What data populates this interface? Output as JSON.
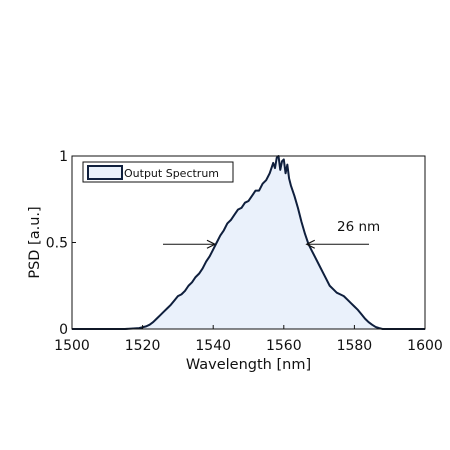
{
  "chart_data": {
    "type": "area",
    "xlabel": "Wavelength [nm]",
    "ylabel": "PSD [a.u.]",
    "xlim": [
      1500,
      1600
    ],
    "ylim": [
      0,
      1
    ],
    "xticks": [
      "1500",
      "1520",
      "1540",
      "1560",
      "1580",
      "1600"
    ],
    "yticks": [
      "0",
      "0.5",
      "1"
    ],
    "grid": false,
    "legend_position": "top-left",
    "series": [
      {
        "name": "Output Spectrum",
        "line_color": "#0f1f3d",
        "fill_color": "#eaf1fb",
        "x": [
          1500,
          1515,
          1519,
          1521,
          1522,
          1523,
          1524,
          1525,
          1526,
          1527,
          1528,
          1529,
          1530,
          1531,
          1532,
          1533,
          1534,
          1535,
          1536,
          1537,
          1538,
          1539,
          1540,
          1541,
          1542,
          1543,
          1544,
          1545,
          1546,
          1547,
          1548,
          1549,
          1550,
          1551,
          1552,
          1553,
          1554,
          1555,
          1556,
          1557,
          1557.5,
          1558,
          1558.5,
          1559,
          1559.5,
          1560,
          1560.5,
          1561,
          1561.5,
          1562,
          1563,
          1564,
          1565,
          1566,
          1567,
          1568,
          1569,
          1570,
          1571,
          1572,
          1573,
          1574,
          1575,
          1576,
          1577,
          1578,
          1579,
          1580,
          1581,
          1582,
          1583,
          1584,
          1585,
          1586,
          1587,
          1588,
          1590,
          1595,
          1600
        ],
        "y": [
          0,
          0,
          0.005,
          0.015,
          0.025,
          0.04,
          0.06,
          0.08,
          0.1,
          0.12,
          0.14,
          0.165,
          0.19,
          0.2,
          0.22,
          0.25,
          0.27,
          0.3,
          0.32,
          0.35,
          0.39,
          0.42,
          0.46,
          0.5,
          0.54,
          0.57,
          0.61,
          0.63,
          0.66,
          0.69,
          0.7,
          0.73,
          0.74,
          0.77,
          0.8,
          0.8,
          0.84,
          0.86,
          0.9,
          0.96,
          0.93,
          0.99,
          1.0,
          0.92,
          0.97,
          0.98,
          0.9,
          0.95,
          0.87,
          0.83,
          0.77,
          0.7,
          0.62,
          0.55,
          0.49,
          0.45,
          0.41,
          0.37,
          0.33,
          0.29,
          0.25,
          0.23,
          0.21,
          0.2,
          0.19,
          0.17,
          0.15,
          0.13,
          0.11,
          0.085,
          0.06,
          0.04,
          0.025,
          0.012,
          0.005,
          0.0,
          0.0,
          0,
          0
        ]
      }
    ],
    "annotations": [
      {
        "text": "26 nm",
        "arrow_left_x": 1540.5,
        "arrow_right_x": 1566.5,
        "y": 0.49
      }
    ]
  }
}
